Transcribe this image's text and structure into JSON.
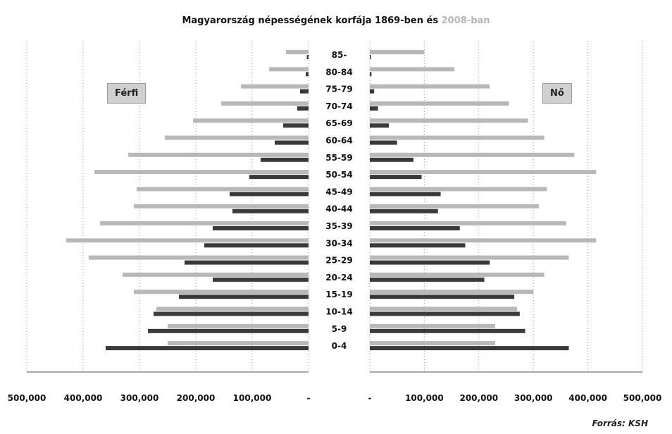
{
  "title": {
    "text_main": "Magyarország népességének korfája 1869-ben és",
    "text_year2": "2008-ban"
  },
  "legend": {
    "male": "Férfi",
    "female": "Nő"
  },
  "source": "Forrás: KSH",
  "colors": {
    "series_1869": "#b8b8b8",
    "series_2008": "#3a3a3a",
    "grid": "#9a9a9a"
  },
  "chart_data": {
    "type": "bar",
    "orientation": "horizontal-population-pyramid",
    "categories": [
      "0-4",
      "5-9",
      "10-14",
      "15-19",
      "20-24",
      "25-29",
      "30-34",
      "35-39",
      "40-44",
      "45-49",
      "50-54",
      "55-59",
      "60-64",
      "65-69",
      "70-74",
      "75-79",
      "80-84",
      "85-"
    ],
    "x_ticks": [
      "500,000",
      "400,000",
      "300,000",
      "200,000",
      "100,000",
      "-",
      "-",
      "100,000",
      "200,000",
      "300,000",
      "400,000",
      "500,000"
    ],
    "xlim": [
      0,
      500000
    ],
    "grid": true,
    "series": [
      {
        "name": "1869",
        "male": [
          250000,
          250000,
          270000,
          310000,
          330000,
          390000,
          430000,
          370000,
          310000,
          305000,
          380000,
          320000,
          255000,
          205000,
          155000,
          120000,
          70000,
          40000
        ],
        "female": [
          230000,
          230000,
          270000,
          300000,
          320000,
          365000,
          415000,
          360000,
          310000,
          325000,
          415000,
          375000,
          320000,
          290000,
          255000,
          220000,
          155000,
          100000
        ]
      },
      {
        "name": "2008",
        "male": [
          360000,
          285000,
          275000,
          230000,
          170000,
          220000,
          185000,
          170000,
          135000,
          140000,
          105000,
          85000,
          60000,
          45000,
          20000,
          15000,
          5000,
          3000
        ],
        "female": [
          365000,
          285000,
          275000,
          265000,
          210000,
          220000,
          175000,
          165000,
          125000,
          130000,
          95000,
          80000,
          50000,
          35000,
          15000,
          8000,
          3000,
          2000
        ]
      }
    ]
  }
}
